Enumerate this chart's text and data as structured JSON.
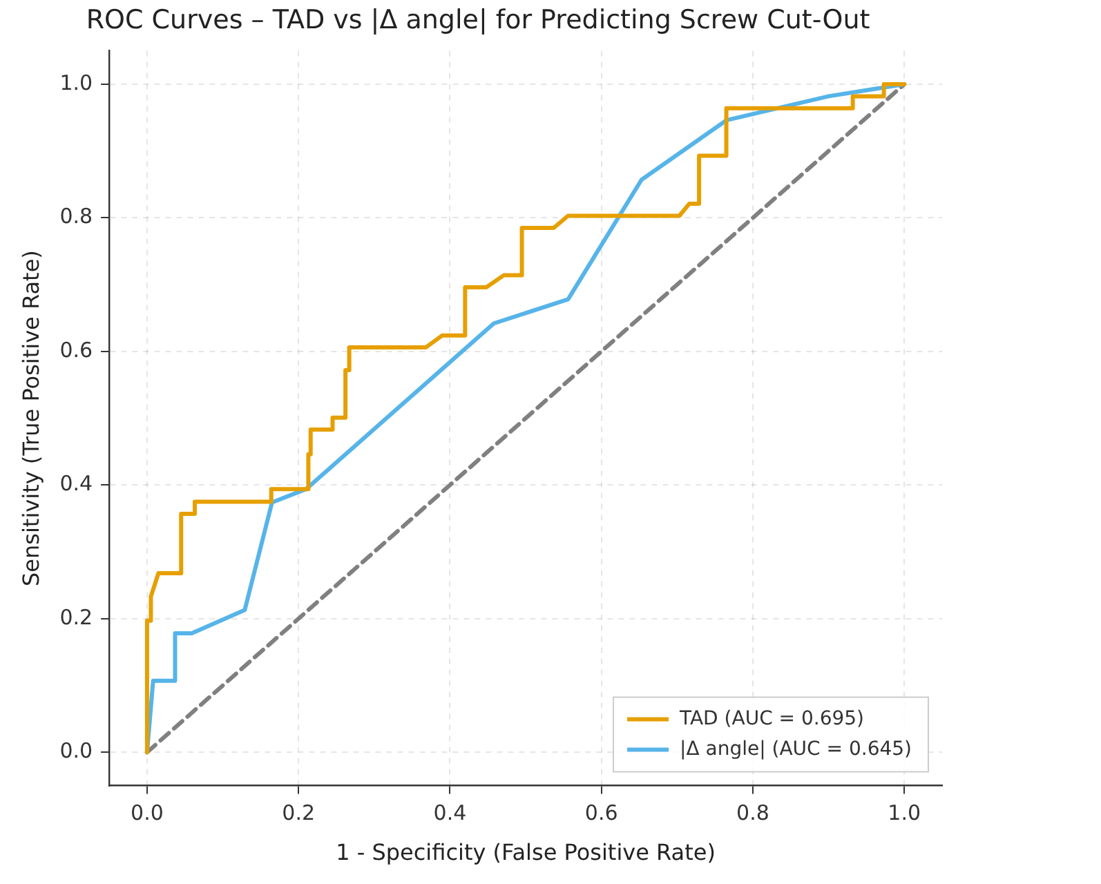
{
  "chart_data": {
    "type": "line",
    "title": "ROC Curves – TAD vs |Δ angle| for Predicting Screw Cut-Out",
    "xlabel": "1 - Specificity (False Positive Rate)",
    "ylabel": "Sensitivity (True Positive Rate)",
    "xlim": [
      -0.05,
      1.05
    ],
    "ylim": [
      -0.05,
      1.05
    ],
    "xticks": [
      {
        "value": 0,
        "label": "0.0"
      },
      {
        "value": 0.2,
        "label": "0.2"
      },
      {
        "value": 0.4,
        "label": "0.4"
      },
      {
        "value": 0.6,
        "label": "0.6"
      },
      {
        "value": 0.8,
        "label": "0.8"
      },
      {
        "value": 1,
        "label": "1.0"
      }
    ],
    "yticks": [
      {
        "value": 0,
        "label": "0.0"
      },
      {
        "value": 0.2,
        "label": "0.2"
      },
      {
        "value": 0.4,
        "label": "0.4"
      },
      {
        "value": 0.6,
        "label": "0.6"
      },
      {
        "value": 0.8,
        "label": "0.8"
      },
      {
        "value": 1,
        "label": "1.0"
      }
    ],
    "grid": true,
    "legend": "bottom right",
    "marker": "none",
    "line_style": "solid",
    "series": [
      {
        "name": "TAD (AUC = 0.695)",
        "color": "#e69f00",
        "x": [
          0,
          0,
          0.005,
          0.005,
          0.015,
          0.045,
          0.045,
          0.063,
          0.063,
          0.164,
          0.164,
          0.21,
          0.213,
          0.213,
          0.216,
          0.216,
          0.245,
          0.245,
          0.262,
          0.262,
          0.267,
          0.267,
          0.368,
          0.39,
          0.42,
          0.42,
          0.448,
          0.471,
          0.495,
          0.495,
          0.537,
          0.556,
          0.703,
          0.716,
          0.729,
          0.729,
          0.765,
          0.765,
          0.932,
          0.932,
          0.973,
          0.973,
          1
        ],
        "values": [
          0,
          0.197,
          0.197,
          0.233,
          0.268,
          0.268,
          0.357,
          0.357,
          0.375,
          0.375,
          0.394,
          0.394,
          0.394,
          0.446,
          0.446,
          0.483,
          0.483,
          0.501,
          0.501,
          0.572,
          0.572,
          0.606,
          0.606,
          0.624,
          0.624,
          0.696,
          0.696,
          0.714,
          0.714,
          0.785,
          0.785,
          0.803,
          0.803,
          0.821,
          0.821,
          0.893,
          0.893,
          0.964,
          0.964,
          0.982,
          0.982,
          1,
          1
        ]
      },
      {
        "name": "|Δ angle| (AUC = 0.645)",
        "color": "#56b4e9",
        "x": [
          0,
          0.008,
          0.037,
          0.037,
          0.059,
          0.129,
          0.165,
          0.21,
          0.458,
          0.556,
          0.653,
          0.765,
          0.9,
          1
        ],
        "values": [
          0,
          0.107,
          0.107,
          0.178,
          0.178,
          0.213,
          0.374,
          0.394,
          0.642,
          0.678,
          0.857,
          0.946,
          0.982,
          1
        ]
      },
      {
        "color": "#808080",
        "line_style": "dashed",
        "x": [
          0,
          1
        ],
        "values": [
          0,
          1
        ]
      }
    ]
  }
}
